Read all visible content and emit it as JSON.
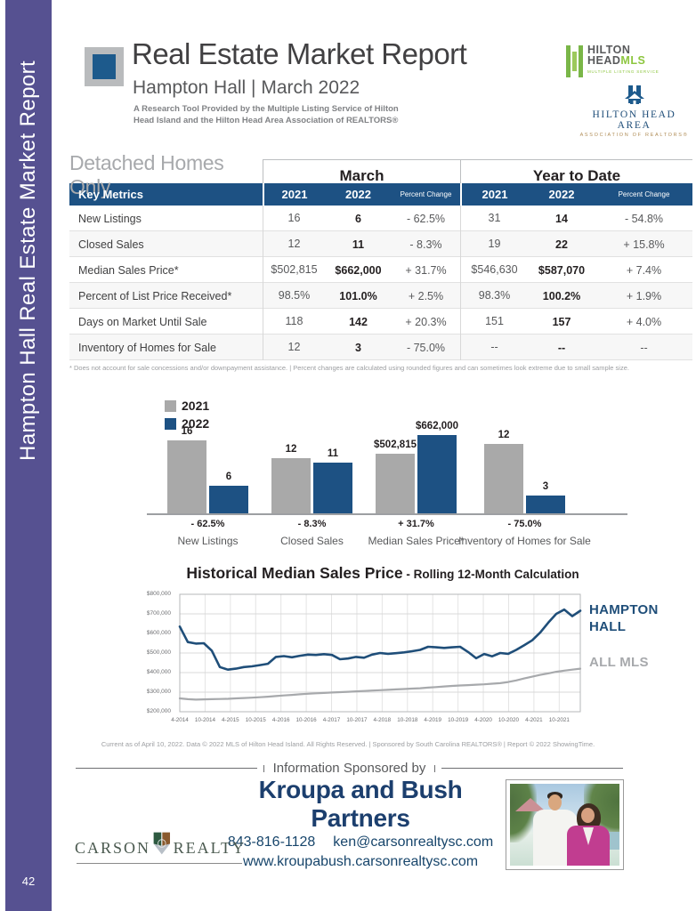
{
  "page": {
    "number": "42",
    "sidebar_title": "Hampton Hall Real Estate Market Report"
  },
  "header": {
    "title": "Real Estate Market Report",
    "subtitle": "Hampton Hall  |  March 2022",
    "description_line1": "A Research Tool Provided by the Multiple Listing Service of Hilton",
    "description_line2": "Head Island and the Hilton Head Area Association of REALTORS®",
    "mls_logo": {
      "line1": "HILTON",
      "line2_dark": "HEAD",
      "line2_green": "MLS",
      "tagline": "MULTIPLE LISTING SERVICE"
    },
    "assoc_logo": {
      "name": "HILTON HEAD AREA",
      "subname": "ASSOCIATION OF REALTORS®"
    }
  },
  "table": {
    "section_label": "Detached Homes Only",
    "group_headers": [
      "March",
      "Year to Date"
    ],
    "header_row": {
      "label": "Key Metrics",
      "cols": [
        "2021",
        "2022",
        "Percent Change",
        "2021",
        "2022",
        "Percent Change"
      ]
    },
    "rows": [
      {
        "label": "New Listings",
        "values": [
          "16",
          "6",
          "- 62.5%",
          "31",
          "14",
          "- 54.8%"
        ]
      },
      {
        "label": "Closed Sales",
        "values": [
          "12",
          "11",
          "- 8.3%",
          "19",
          "22",
          "+ 15.8%"
        ]
      },
      {
        "label": "Median Sales Price*",
        "values": [
          "$502,815",
          "$662,000",
          "+ 31.7%",
          "$546,630",
          "$587,070",
          "+ 7.4%"
        ]
      },
      {
        "label": "Percent of List Price Received*",
        "values": [
          "98.5%",
          "101.0%",
          "+ 2.5%",
          "98.3%",
          "100.2%",
          "+ 1.9%"
        ]
      },
      {
        "label": "Days on Market Until Sale",
        "values": [
          "118",
          "142",
          "+ 20.3%",
          "151",
          "157",
          "+ 4.0%"
        ]
      },
      {
        "label": "Inventory of Homes for Sale",
        "values": [
          "12",
          "3",
          "- 75.0%",
          "--",
          "--",
          "--"
        ]
      }
    ],
    "footnote": "* Does not account for sale concessions and/or downpayment assistance.  |  Percent changes are calculated using rounded figures and can sometimes look extreme due to small sample size."
  },
  "chart_data": [
    {
      "type": "bar",
      "categories": [
        "New Listings",
        "Closed Sales",
        "Median Sales Price*",
        "Inventory of Homes for Sale"
      ],
      "series": [
        {
          "name": "2021",
          "color": "#a9a9a9",
          "values": [
            16,
            12,
            502815,
            12
          ],
          "labels": [
            "16",
            "12",
            "$502,815",
            "12"
          ]
        },
        {
          "name": "2022",
          "color": "#1d5183",
          "values": [
            6,
            11,
            662000,
            3
          ],
          "labels": [
            "6",
            "11",
            "$662,000",
            "3"
          ]
        }
      ],
      "percent_change": [
        "- 62.5%",
        "- 8.3%",
        "+ 31.7%",
        "- 75.0%"
      ],
      "legend_position": "top-left",
      "note": "bars scaled within each category group"
    },
    {
      "type": "line",
      "title": "Historical Median Sales Price",
      "subtitle": " - Rolling 12-Month Calculation",
      "ylim": [
        200000,
        800000
      ],
      "ytick_labels": [
        "$800,000",
        "$700,000",
        "$600,000",
        "$500,000",
        "$400,000",
        "$300,000",
        "$200,000"
      ],
      "xtick_labels": [
        "4-2014",
        "10-2014",
        "4-2015",
        "10-2015",
        "4-2016",
        "10-2016",
        "4-2017",
        "10-2017",
        "4-2018",
        "10-2018",
        "4-2019",
        "10-2019",
        "4-2020",
        "10-2020",
        "4-2021",
        "10-2021"
      ],
      "grid": true,
      "series": [
        {
          "name": "HAMPTON HALL",
          "color": "#1f4e79",
          "values_thousands": [
            635,
            556,
            548,
            550,
            512,
            428,
            415,
            420,
            428,
            432,
            438,
            445,
            480,
            484,
            478,
            486,
            492,
            490,
            494,
            490,
            468,
            472,
            480,
            476,
            492,
            500,
            496,
            499,
            503,
            509,
            516,
            532,
            529,
            526,
            529,
            532,
            505,
            473,
            495,
            483,
            500,
            496,
            516,
            540,
            565,
            605,
            655,
            700,
            722,
            688,
            716
          ]
        },
        {
          "name": "ALL MLS",
          "color": "#a7a9ac",
          "values_thousands": [
            268,
            264,
            262,
            263,
            264,
            265,
            266,
            268,
            270,
            272,
            274,
            277,
            280,
            283,
            286,
            289,
            292,
            294,
            296,
            298,
            300,
            302,
            304,
            306,
            308,
            310,
            312,
            314,
            316,
            318,
            320,
            323,
            326,
            329,
            332,
            334,
            336,
            338,
            340,
            343,
            346,
            352,
            360,
            370,
            379,
            388,
            396,
            404,
            410,
            415,
            420
          ]
        }
      ]
    }
  ],
  "source_line": "Current as of April 10, 2022. Data © 2022 MLS of Hilton Head Island. All Rights Reserved.  |  Sponsored by South Carolina REALTORS®  |  Report © 2022 ShowingTime.",
  "footer": {
    "sponsored_by": "Information Sponsored by",
    "sponsor_name_line1": "Kroupa and Bush",
    "sponsor_name_line2": "Partners",
    "phone": "843-816-1128",
    "email": "ken@carsonrealtysc.com",
    "website": "www.kroupabush.carsonrealtysc.com",
    "brokerage_word1": "CARSON",
    "brokerage_word2": "REALTY"
  },
  "colors": {
    "accent_blue": "#1d5183",
    "navy_text": "#1f4e79",
    "bar_gray": "#a9a9a9",
    "sidebar_purple": "#565191",
    "mls_green": "#8dc63f",
    "assoc_gold": "#b08d57"
  }
}
